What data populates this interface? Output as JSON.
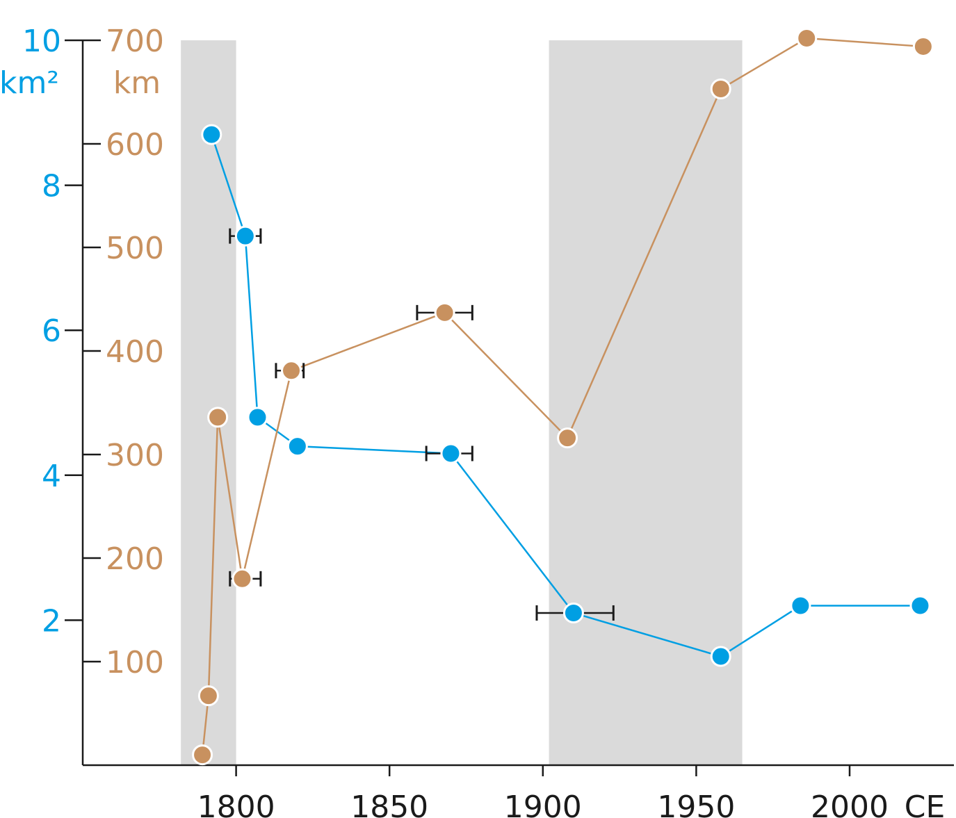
{
  "chart_data": {
    "type": "line",
    "x_axis": {
      "range": [
        1750,
        2034
      ],
      "ticks": [
        1800,
        1850,
        1900,
        1950,
        2000
      ],
      "tick_labels": [
        "1800",
        "1850",
        "1900",
        "1950",
        "2000"
      ],
      "unit_label": "CE"
    },
    "y_axis_left": {
      "unit_label": "km²",
      "range": [
        0,
        10
      ],
      "ticks": [
        2,
        4,
        6,
        8,
        10
      ],
      "tick_labels": [
        "2",
        "4",
        "6",
        "8",
        "10"
      ],
      "color": "#009fe3"
    },
    "y_axis_right": {
      "unit_label": "km",
      "range": [
        0,
        700
      ],
      "ticks": [
        100,
        200,
        300,
        400,
        500,
        600,
        700
      ],
      "tick_labels": [
        "100",
        "200",
        "300",
        "400",
        "500",
        "600",
        "700"
      ],
      "color": "#c8915f"
    },
    "shaded_periods": [
      [
        1782,
        1800
      ],
      [
        1902,
        1965
      ]
    ],
    "grid": false,
    "series": [
      {
        "axis": "left",
        "color": "#009fe3",
        "points": [
          {
            "x": 1792,
            "y": 8.7
          },
          {
            "x": 1803,
            "y": 7.3,
            "err": [
              1798,
              1808
            ]
          },
          {
            "x": 1807,
            "y": 4.8
          },
          {
            "x": 1820,
            "y": 4.4
          },
          {
            "x": 1870,
            "y": 4.3,
            "err": [
              1862,
              1877
            ]
          },
          {
            "x": 1910,
            "y": 2.1,
            "err": [
              1898,
              1923
            ]
          },
          {
            "x": 1958,
            "y": 1.5
          },
          {
            "x": 1984,
            "y": 2.2
          },
          {
            "x": 2023,
            "y": 2.2
          }
        ]
      },
      {
        "axis": "right",
        "color": "#c8915f",
        "points": [
          {
            "x": 1789,
            "y": 10
          },
          {
            "x": 1791,
            "y": 67
          },
          {
            "x": 1794,
            "y": 336
          },
          {
            "x": 1802,
            "y": 180,
            "err": [
              1798,
              1808
            ]
          },
          {
            "x": 1818,
            "y": 381,
            "err": [
              1813,
              1822
            ]
          },
          {
            "x": 1868,
            "y": 437,
            "err": [
              1859,
              1877
            ]
          },
          {
            "x": 1908,
            "y": 316
          },
          {
            "x": 1958,
            "y": 653
          },
          {
            "x": 1986,
            "y": 702
          },
          {
            "x": 2024,
            "y": 694
          }
        ]
      }
    ]
  }
}
